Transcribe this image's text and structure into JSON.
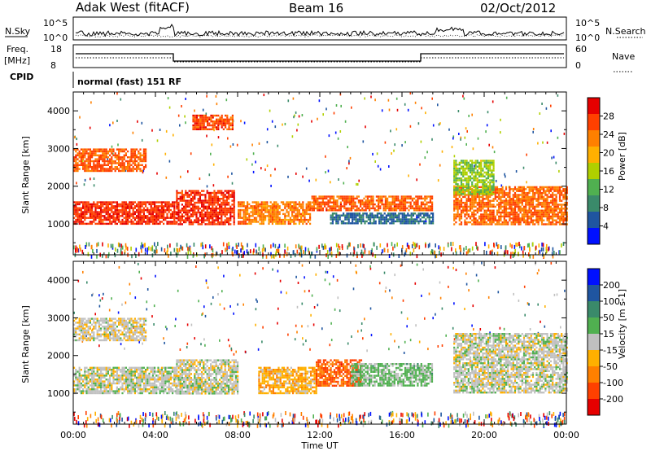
{
  "header": {
    "station": "Adak West (fitACF)",
    "beam": "Beam 16",
    "date": "02/Oct/2012"
  },
  "top_panels": {
    "nsky_label": "N.Sky",
    "nsky_ticks": [
      "10^5",
      "10^0"
    ],
    "nsearch_label": "N.Search",
    "nsearch_ticks": [
      "10^5",
      "10^0"
    ],
    "freq_label_1": "Freq.",
    "freq_label_2": "[MHz]",
    "freq_ticks": [
      "18",
      "8"
    ],
    "nave_label": "Nave",
    "nave_ticks": [
      "60",
      "0"
    ],
    "cpid_label": "CPID",
    "cpid_value": "normal (fast) 151 RF"
  },
  "chart_data": [
    {
      "type": "heatmap",
      "panel": "power",
      "ylabel": "Slant Range [km]",
      "y_ticks": [
        "4000",
        "3000",
        "2000",
        "1000"
      ],
      "ylim": [
        180,
        4500
      ],
      "xlim": [
        "00:00",
        "24:00"
      ],
      "colorbar_label": "Power [dB]",
      "colorbar_ticks": [
        "28",
        "24",
        "20",
        "16",
        "12",
        "8",
        "4"
      ],
      "colorbar_colors": [
        "#e60000",
        "#ff4000",
        "#ff8000",
        "#ffb000",
        "#b0d000",
        "#50b050",
        "#3a8a6a",
        "#1f55a0",
        "#0010ff"
      ],
      "colorbar_range": [
        0,
        30
      ],
      "scatter_regions": [
        {
          "t0": 0.0,
          "t1": 5.0,
          "r0": 1000,
          "r1": 1600,
          "level": 26
        },
        {
          "t0": 0.0,
          "t1": 3.5,
          "r0": 2400,
          "r1": 3000,
          "level": 24
        },
        {
          "t0": 5.0,
          "t1": 7.8,
          "r0": 1000,
          "r1": 1900,
          "level": 26
        },
        {
          "t0": 5.8,
          "t1": 7.8,
          "r0": 3500,
          "r1": 3900,
          "level": 25
        },
        {
          "t0": 8.0,
          "t1": 11.5,
          "r0": 1000,
          "r1": 1600,
          "level": 22
        },
        {
          "t0": 11.5,
          "t1": 17.5,
          "r0": 1350,
          "r1": 1750,
          "level": 24
        },
        {
          "t0": 12.5,
          "t1": 17.5,
          "r0": 1000,
          "r1": 1300,
          "level": 6
        },
        {
          "t0": 18.5,
          "t1": 24.0,
          "r0": 1000,
          "r1": 2000,
          "level": 23
        },
        {
          "t0": 18.5,
          "t1": 20.5,
          "r0": 1800,
          "r1": 2700,
          "level": 14
        }
      ]
    },
    {
      "type": "heatmap",
      "panel": "velocity",
      "ylabel": "Slant Range [km]",
      "xlabel": "Time UT",
      "x_ticks": [
        "00:00",
        "04:00",
        "08:00",
        "12:00",
        "16:00",
        "20:00",
        "00:00"
      ],
      "y_ticks": [
        "4000",
        "3000",
        "2000",
        "1000"
      ],
      "ylim": [
        180,
        4500
      ],
      "xlim": [
        "00:00",
        "24:00"
      ],
      "colorbar_label": "Velocity [m s-1]",
      "colorbar_ticks": [
        "200",
        "100",
        "50",
        "15",
        "-15",
        "-50",
        "-100",
        "-200"
      ],
      "colorbar_colors": [
        "#0010ff",
        "#1f55a0",
        "#3a8a6a",
        "#50b050",
        "#c0c0c0",
        "#ffb000",
        "#ff8000",
        "#ff4000",
        "#e60000"
      ],
      "colorbar_range": [
        -250,
        250
      ],
      "scatter_regions": [
        {
          "t0": 0.0,
          "t1": 5.0,
          "r0": 1000,
          "r1": 1700,
          "level": 0
        },
        {
          "t0": 0.0,
          "t1": 3.5,
          "r0": 2400,
          "r1": 3000,
          "level": -10
        },
        {
          "t0": 5.0,
          "t1": 8.0,
          "r0": 1000,
          "r1": 1900,
          "level": 0
        },
        {
          "t0": 9.0,
          "t1": 11.8,
          "r0": 1000,
          "r1": 1700,
          "level": -60
        },
        {
          "t0": 11.8,
          "t1": 14.0,
          "r0": 1200,
          "r1": 1900,
          "level": -150
        },
        {
          "t0": 13.5,
          "t1": 17.5,
          "r0": 1200,
          "r1": 1800,
          "level": 40
        },
        {
          "t0": 18.5,
          "t1": 24.0,
          "r0": 1000,
          "r1": 2600,
          "level": 0
        }
      ]
    }
  ]
}
